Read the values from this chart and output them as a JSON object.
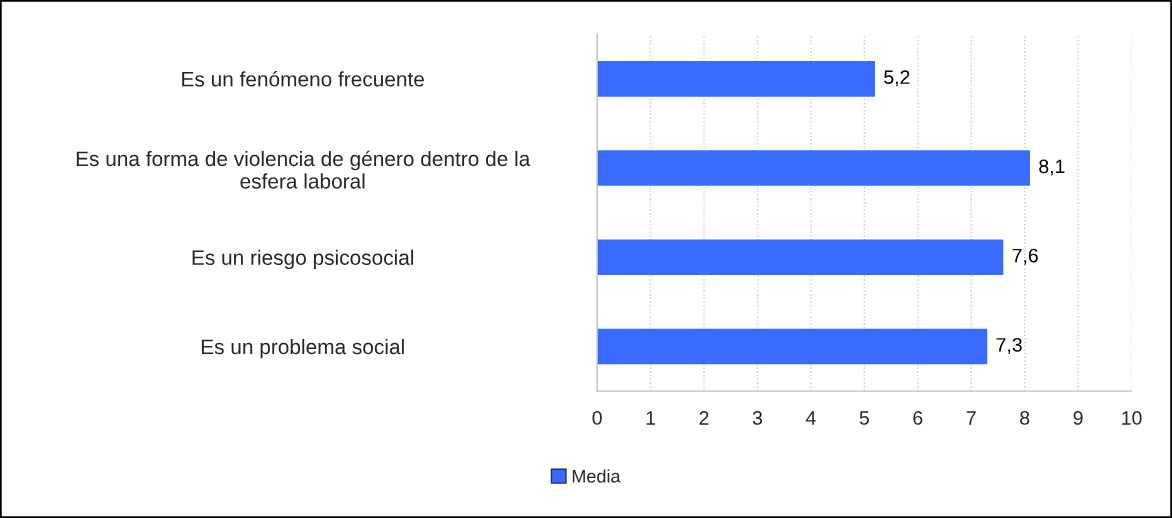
{
  "chart_data": {
    "type": "bar",
    "orientation": "horizontal",
    "categories": [
      "Es un fenómeno frecuente",
      "Es una forma de violencia de género dentro de la\nesfera laboral",
      "Es un riesgo psicosocial",
      "Es un problema social"
    ],
    "series": [
      {
        "name": "Media",
        "color": "#3a6bff",
        "values": [
          5.2,
          8.1,
          7.6,
          7.3
        ],
        "value_labels": [
          "5,2",
          "8,1",
          "7,6",
          "7,3"
        ]
      }
    ],
    "xlim": [
      0,
      10
    ],
    "xticks": [
      0,
      1,
      2,
      3,
      4,
      5,
      6,
      7,
      8,
      9,
      10
    ],
    "grid": "x",
    "legend": "bottom"
  }
}
